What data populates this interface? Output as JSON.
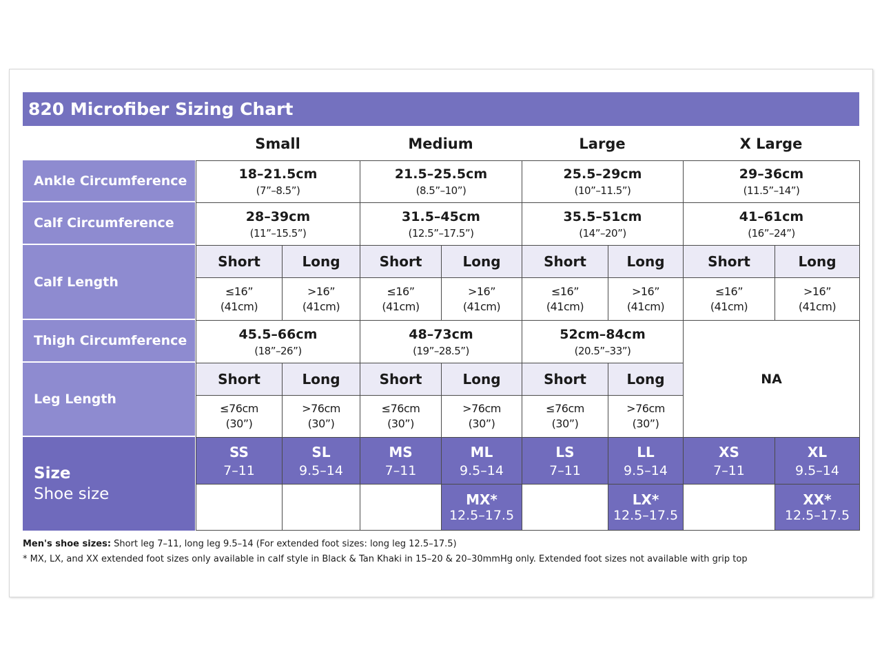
{
  "title": "820 Microfiber Sizing Chart",
  "columns": [
    "Small",
    "Medium",
    "Large",
    "X Large"
  ],
  "ankle": {
    "label": "Ankle Circumference",
    "cells": [
      {
        "main": "18–21.5cm",
        "sub": "(7”–8.5”)"
      },
      {
        "main": "21.5–25.5cm",
        "sub": "(8.5”–10”)"
      },
      {
        "main": "25.5–29cm",
        "sub": "(10”–11.5”)"
      },
      {
        "main": "29–36cm",
        "sub": "(11.5”–14”)"
      }
    ]
  },
  "calf_circumference": {
    "label": "Calf Circumference",
    "cells": [
      {
        "main": "28–39cm",
        "sub": "(11”–15.5”)"
      },
      {
        "main": "31.5–45cm",
        "sub": "(12.5”–17.5”)"
      },
      {
        "main": "35.5–51cm",
        "sub": "(14”–20”)"
      },
      {
        "main": "41–61cm",
        "sub": "(16”–24”)"
      }
    ]
  },
  "calf_length": {
    "label": "Calf Length",
    "cells": [
      {
        "header": "Short",
        "lines": [
          "≤16”",
          "(41cm)"
        ]
      },
      {
        "header": "Long",
        "lines": [
          ">16”",
          "(41cm)"
        ]
      },
      {
        "header": "Short",
        "lines": [
          "≤16”",
          "(41cm)"
        ]
      },
      {
        "header": "Long",
        "lines": [
          ">16”",
          "(41cm)"
        ]
      },
      {
        "header": "Short",
        "lines": [
          "≤16”",
          "(41cm)"
        ]
      },
      {
        "header": "Long",
        "lines": [
          ">16”",
          "(41cm)"
        ]
      },
      {
        "header": "Short",
        "lines": [
          "≤16”",
          "(41cm)"
        ]
      },
      {
        "header": "Long",
        "lines": [
          ">16”",
          "(41cm)"
        ]
      }
    ]
  },
  "thigh": {
    "label": "Thigh Circumference",
    "cells": [
      {
        "main": "45.5–66cm",
        "sub": "(18”–26”)"
      },
      {
        "main": "48–73cm",
        "sub": "(19”–28.5”)"
      },
      {
        "main": "52cm–84cm",
        "sub": "(20.5”–33”)"
      }
    ],
    "na": "NA"
  },
  "leg_length": {
    "label": "Leg Length",
    "cells": [
      {
        "header": "Short",
        "lines": [
          "≤76cm",
          "(30”)"
        ]
      },
      {
        "header": "Long",
        "lines": [
          ">76cm",
          "(30”)"
        ]
      },
      {
        "header": "Short",
        "lines": [
          "≤76cm",
          "(30”)"
        ]
      },
      {
        "header": "Long",
        "lines": [
          ">76cm",
          "(30”)"
        ]
      },
      {
        "header": "Short",
        "lines": [
          "≤76cm",
          "(30”)"
        ]
      },
      {
        "header": "Long",
        "lines": [
          ">76cm",
          "(30”)"
        ]
      }
    ]
  },
  "size": {
    "label": "Size",
    "sublabel": "Shoe size",
    "cells": [
      {
        "code": "SS",
        "shoe": "7–11"
      },
      {
        "code": "SL",
        "shoe": "9.5–14"
      },
      {
        "code": "MS",
        "shoe": "7–11"
      },
      {
        "code": "ML",
        "shoe": "9.5–14"
      },
      {
        "code": "LS",
        "shoe": "7–11"
      },
      {
        "code": "LL",
        "shoe": "9.5–14"
      },
      {
        "code": "XS",
        "shoe": "7–11"
      },
      {
        "code": "XL",
        "shoe": "9.5–14"
      }
    ],
    "extended": [
      null,
      null,
      null,
      {
        "code": "MX*",
        "shoe": "12.5–17.5"
      },
      null,
      {
        "code": "LX*",
        "shoe": "12.5–17.5"
      },
      null,
      {
        "code": "XX*",
        "shoe": "12.5–17.5"
      }
    ]
  },
  "notes": [
    {
      "bold": "Men's shoe sizes:",
      "text": " Short leg 7–11, long leg 9.5–14 (For extended foot sizes: long leg 12.5–17.5)"
    },
    {
      "text": "* MX, LX, and XX extended foot sizes only available in calf style in Black & Tan Khaki in 15–20 & 20–30mmHg only. Extended foot sizes not available with grip top"
    }
  ]
}
